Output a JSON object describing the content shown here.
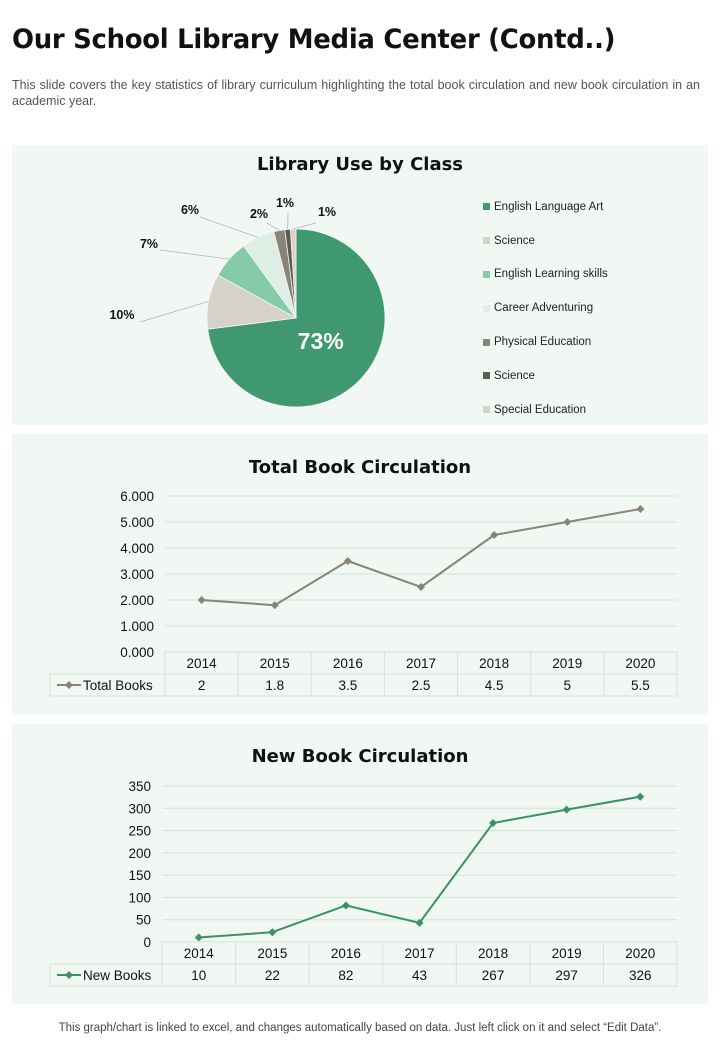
{
  "page": {
    "title": "Our School Library Media Center (Contd..)",
    "subtitle": "This slide covers the key statistics of library curriculum highlighting the total book circulation and new book circulation in an academic year.",
    "footer": "This graph/chart is linked to excel, and changes automatically based on data. Just left click on it and select “Edit Data”."
  },
  "chart_data": [
    {
      "type": "pie",
      "title": "Library Use by Class",
      "categories": [
        "English Language Art",
        "Science",
        "English Learning skills",
        "Career Adventuring",
        "Physical Education",
        "Science",
        "Special Education"
      ],
      "values": [
        73,
        10,
        7,
        6,
        2,
        1,
        1
      ],
      "labels": [
        "73%",
        "10%",
        "7%",
        "6%",
        "2%",
        "1%",
        "1%"
      ],
      "colors": [
        "#3f9870",
        "#d6d2ca",
        "#86cba8",
        "#deeee4",
        "#88847a",
        "#5d5a55",
        "#d7d3cb"
      ],
      "legend": "right"
    },
    {
      "type": "line",
      "title": "Total Book Circulation",
      "categories": [
        "2014",
        "2015",
        "2016",
        "2017",
        "2018",
        "2019",
        "2020"
      ],
      "series": [
        {
          "name": "Total Books",
          "values": [
            2,
            1.8,
            3.5,
            2.5,
            4.5,
            5,
            5.5
          ],
          "display": [
            "2",
            "1.8",
            "3.5",
            "2.5",
            "4.5",
            "5",
            "5.5"
          ],
          "color": "#8a8474"
        }
      ],
      "yticks": [
        "0.000",
        "1.000",
        "2.000",
        "3.000",
        "4.000",
        "5.000",
        "6.000"
      ],
      "ylim": [
        0,
        6
      ],
      "grid": true,
      "data_table": true
    },
    {
      "type": "line",
      "title": "New Book Circulation",
      "categories": [
        "2014",
        "2015",
        "2016",
        "2017",
        "2018",
        "2019",
        "2020"
      ],
      "series": [
        {
          "name": "New Books",
          "values": [
            10,
            22,
            82,
            43,
            267,
            297,
            326
          ],
          "display": [
            "10",
            "22",
            "82",
            "43",
            "267",
            "297",
            "326"
          ],
          "color": "#3a9168"
        }
      ],
      "yticks": [
        "0",
        "50",
        "100",
        "150",
        "200",
        "250",
        "300",
        "350"
      ],
      "ylim": [
        0,
        350
      ],
      "grid": true,
      "data_table": true
    }
  ]
}
